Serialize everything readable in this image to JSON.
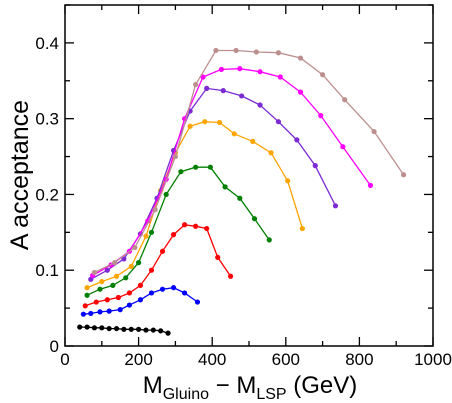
{
  "chart_data": {
    "type": "line",
    "title": "",
    "xlabel": {
      "main": "M",
      "sub1": "Gluino",
      "mid": " − M",
      "sub2": "LSP",
      "tail": "  (GeV)"
    },
    "ylabel": "A  acceptance",
    "xlim": [
      0,
      1000
    ],
    "ylim": [
      0,
      0.45
    ],
    "xticks": [
      "0",
      "200",
      "400",
      "600",
      "800",
      "1000"
    ],
    "xtick_values": [
      0,
      200,
      400,
      600,
      800,
      1000
    ],
    "yticks": [
      "0",
      "0.1",
      "0.2",
      "0.3",
      "0.4"
    ],
    "ytick_values": [
      0,
      0.1,
      0.2,
      0.3,
      0.4
    ],
    "grid": false,
    "series": [
      {
        "color": "#000000",
        "x": [
          40,
          60,
          80,
          100,
          120,
          140,
          160,
          180,
          200,
          220,
          240,
          260,
          280
        ],
        "y": [
          0.025,
          0.025,
          0.024,
          0.024,
          0.023,
          0.023,
          0.022,
          0.022,
          0.022,
          0.021,
          0.021,
          0.02,
          0.017
        ]
      },
      {
        "color": "#0000ff",
        "x": [
          50,
          70,
          95,
          120,
          150,
          175,
          205,
          235,
          265,
          295,
          325,
          360
        ],
        "y": [
          0.042,
          0.043,
          0.045,
          0.046,
          0.048,
          0.054,
          0.061,
          0.07,
          0.075,
          0.077,
          0.07,
          0.058
        ]
      },
      {
        "color": "#ff0000",
        "x": [
          55,
          85,
          115,
          145,
          175,
          205,
          235,
          265,
          295,
          325,
          355,
          385,
          415,
          450
        ],
        "y": [
          0.053,
          0.058,
          0.061,
          0.064,
          0.07,
          0.08,
          0.1,
          0.125,
          0.147,
          0.16,
          0.158,
          0.155,
          0.117,
          0.092
        ]
      },
      {
        "color": "#008000",
        "x": [
          60,
          95,
          130,
          165,
          200,
          235,
          275,
          315,
          355,
          395,
          435,
          475,
          515,
          555
        ],
        "y": [
          0.067,
          0.075,
          0.08,
          0.09,
          0.11,
          0.15,
          0.2,
          0.23,
          0.236,
          0.236,
          0.21,
          0.195,
          0.168,
          0.14
        ]
      },
      {
        "color": "#ffa500",
        "x": [
          60,
          100,
          140,
          180,
          220,
          260,
          300,
          340,
          380,
          420,
          460,
          510,
          560,
          605,
          645
        ],
        "y": [
          0.077,
          0.085,
          0.092,
          0.105,
          0.145,
          0.205,
          0.255,
          0.29,
          0.296,
          0.295,
          0.28,
          0.27,
          0.255,
          0.218,
          0.155
        ]
      },
      {
        "color": "#7b2ad4",
        "x": [
          70,
          115,
          160,
          205,
          250,
          295,
          340,
          385,
          430,
          480,
          530,
          580,
          630,
          680,
          735
        ],
        "y": [
          0.088,
          0.1,
          0.115,
          0.148,
          0.195,
          0.258,
          0.31,
          0.34,
          0.337,
          0.33,
          0.318,
          0.296,
          0.272,
          0.238,
          0.185
        ]
      },
      {
        "color": "#ff00ff",
        "x": [
          75,
          125,
          175,
          225,
          275,
          325,
          375,
          425,
          475,
          530,
          585,
          640,
          695,
          755,
          830
        ],
        "y": [
          0.093,
          0.107,
          0.125,
          0.165,
          0.22,
          0.3,
          0.355,
          0.365,
          0.366,
          0.362,
          0.355,
          0.335,
          0.304,
          0.263,
          0.212
        ]
      },
      {
        "color": "#bc8f8f",
        "x": [
          80,
          135,
          190,
          245,
          300,
          355,
          410,
          465,
          520,
          580,
          640,
          700,
          760,
          840,
          920
        ],
        "y": [
          0.097,
          0.11,
          0.13,
          0.18,
          0.25,
          0.345,
          0.39,
          0.39,
          0.388,
          0.387,
          0.38,
          0.358,
          0.325,
          0.283,
          0.226
        ]
      }
    ]
  }
}
